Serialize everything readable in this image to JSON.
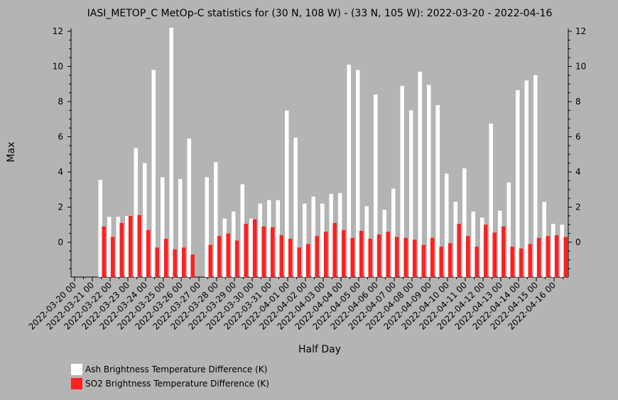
{
  "chart_data": {
    "type": "bar",
    "title": "IASI_METOP_C MetOp-C statistics for (30 N, 108 W) - (33 N, 105 W): 2022-03-20 - 2022-04-16",
    "xlabel": "Half Day",
    "ylabel": "Max",
    "ylim": [
      -2,
      12.2
    ],
    "yticks": [
      0,
      2,
      4,
      6,
      8,
      10,
      12
    ],
    "grid": false,
    "legend_position": "bottom-left",
    "tick_labels": [
      "2022-03-20 00",
      "2022-03-21 00",
      "2022-03-22 00",
      "2022-03-23 00",
      "2022-03-24 00",
      "2022-03-25 00",
      "2022-03-26 00",
      "2022-03-27 00",
      "2022-03-28 00",
      "2022-03-29 00",
      "2022-03-30 00",
      "2022-03-31 00",
      "2022-04-01 00",
      "2022-04-02 00",
      "2022-04-03 00",
      "2022-04-04 00",
      "2022-04-05 00",
      "2022-04-06 00",
      "2022-04-07 00",
      "2022-04-08 00",
      "2022-04-09 00",
      "2022-04-10 00",
      "2022-04-11 00",
      "2022-04-12 00",
      "2022-04-13 00",
      "2022-04-14 00",
      "2022-04-15 00",
      "2022-04-16 00"
    ],
    "series": [
      {
        "name": "Ash Brightness Temperature Difference (K)",
        "color": "#ffffff",
        "values": [
          null,
          null,
          null,
          3.55,
          1.45,
          1.45,
          1.5,
          5.35,
          4.5,
          9.8,
          3.7,
          12.2,
          3.6,
          5.9,
          null,
          3.7,
          4.55,
          1.35,
          1.75,
          3.3,
          1.35,
          2.2,
          2.4,
          2.4,
          7.5,
          5.95,
          2.2,
          2.6,
          2.2,
          2.75,
          2.8,
          10.1,
          9.8,
          2.05,
          8.4,
          1.85,
          3.05,
          8.9,
          7.5,
          9.7,
          8.95,
          7.8,
          3.9,
          2.3,
          4.2,
          1.75,
          1.4,
          6.75,
          1.8,
          3.4,
          8.65,
          9.2,
          9.5,
          2.3,
          1.05,
          1.0
        ]
      },
      {
        "name": "SO2 Brightness Temperature Difference (K)",
        "color": "#ff2020",
        "values": [
          null,
          null,
          null,
          0.9,
          0.3,
          1.1,
          1.5,
          1.55,
          0.7,
          -0.3,
          0.2,
          -0.4,
          -0.3,
          -0.7,
          null,
          -0.15,
          0.35,
          0.5,
          0.1,
          1.05,
          1.3,
          0.9,
          0.85,
          0.4,
          0.2,
          -0.3,
          -0.1,
          0.35,
          0.6,
          1.1,
          0.7,
          0.25,
          0.65,
          0.2,
          0.45,
          0.6,
          0.3,
          0.25,
          0.15,
          -0.15,
          0.25,
          -0.25,
          -0.05,
          1.05,
          0.35,
          -0.25,
          1.0,
          0.55,
          0.9,
          -0.25,
          -0.35,
          -0.1,
          0.25,
          0.35,
          0.4,
          0.3
        ]
      }
    ]
  }
}
